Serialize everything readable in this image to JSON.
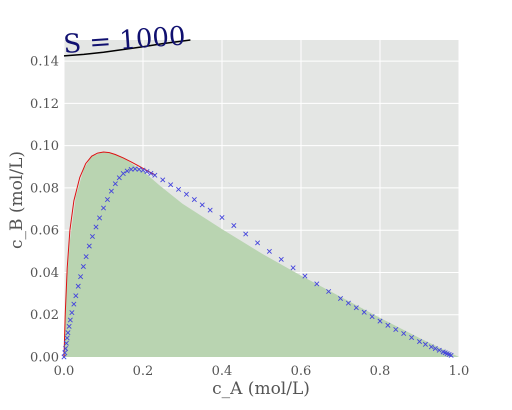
{
  "chart_data": {
    "type": "line",
    "title": "",
    "xlabel": "c_A (mol/L)",
    "ylabel": "c_B (mol/L)",
    "xlim": [
      0.0,
      1.0
    ],
    "ylim": [
      0.0,
      0.15
    ],
    "x_ticks": [
      "0.0",
      "0.2",
      "0.4",
      "0.6",
      "0.8",
      "1.0"
    ],
    "y_ticks": [
      "0.00",
      "0.02",
      "0.04",
      "0.06",
      "0.08",
      "0.10",
      "0.12",
      "0.14"
    ],
    "grid": true,
    "colors": {
      "background": "#e4e6e4",
      "grid": "#ffffff",
      "fill": "#b9d4b1",
      "red_line": "#dd1111",
      "markers": "#4444dd",
      "annotation_line": "#000000",
      "annotation_text": "#101070"
    },
    "annotation": {
      "text": "S = 1000",
      "line": [
        [
          0.0,
          0.1425
        ],
        [
          0.05,
          0.1432
        ],
        [
          0.1,
          0.1442
        ],
        [
          0.15,
          0.1455
        ],
        [
          0.2,
          0.1468
        ],
        [
          0.25,
          0.1483
        ],
        [
          0.32,
          0.15
        ]
      ]
    },
    "filled_region": [
      [
        0.0,
        0.0
      ],
      [
        0.005,
        0.03
      ],
      [
        0.015,
        0.055
      ],
      [
        0.03,
        0.076
      ],
      [
        0.05,
        0.089
      ],
      [
        0.07,
        0.095
      ],
      [
        0.1,
        0.097
      ],
      [
        0.13,
        0.096
      ],
      [
        0.16,
        0.093
      ],
      [
        0.2,
        0.088
      ],
      [
        0.24,
        0.0815
      ],
      [
        0.3,
        0.0725
      ],
      [
        0.4,
        0.0605
      ],
      [
        0.5,
        0.049
      ],
      [
        0.6,
        0.0385
      ],
      [
        0.7,
        0.0285
      ],
      [
        0.8,
        0.0185
      ],
      [
        0.9,
        0.009
      ],
      [
        1.0,
        0.0
      ]
    ],
    "series": [
      {
        "style": "line",
        "color": "#dd1111",
        "x": [
          0.0,
          0.003,
          0.008,
          0.015,
          0.025,
          0.04,
          0.055,
          0.07,
          0.085,
          0.1,
          0.115,
          0.13,
          0.15,
          0.17,
          0.19,
          0.21,
          0.23
        ],
        "y": [
          0.0,
          0.02,
          0.042,
          0.06,
          0.074,
          0.085,
          0.0915,
          0.095,
          0.0965,
          0.097,
          0.0967,
          0.0958,
          0.0942,
          0.0923,
          0.0903,
          0.0882,
          0.0862
        ]
      },
      {
        "style": "markers",
        "marker": "x",
        "color": "#4444dd",
        "x": [
          0.0,
          0.002,
          0.004,
          0.006,
          0.008,
          0.01,
          0.013,
          0.016,
          0.02,
          0.025,
          0.03,
          0.036,
          0.042,
          0.049,
          0.056,
          0.064,
          0.072,
          0.081,
          0.09,
          0.1,
          0.11,
          0.12,
          0.13,
          0.14,
          0.15,
          0.16,
          0.17,
          0.18,
          0.19,
          0.2,
          0.21,
          0.22,
          0.23,
          0.25,
          0.27,
          0.29,
          0.31,
          0.33,
          0.35,
          0.37,
          0.4,
          0.43,
          0.46,
          0.49,
          0.52,
          0.55,
          0.58,
          0.61,
          0.64,
          0.67,
          0.7,
          0.72,
          0.74,
          0.76,
          0.78,
          0.8,
          0.82,
          0.84,
          0.86,
          0.88,
          0.9,
          0.915,
          0.93,
          0.94,
          0.95,
          0.96,
          0.965,
          0.97,
          0.975,
          0.98
        ],
        "y": [
          0.0,
          0.002,
          0.004,
          0.0065,
          0.009,
          0.0115,
          0.0145,
          0.0175,
          0.021,
          0.025,
          0.029,
          0.0335,
          0.038,
          0.0428,
          0.0475,
          0.0525,
          0.057,
          0.0615,
          0.0658,
          0.0705,
          0.0745,
          0.0785,
          0.082,
          0.0848,
          0.0868,
          0.088,
          0.0888,
          0.089,
          0.0888,
          0.0884,
          0.0877,
          0.0869,
          0.086,
          0.0838,
          0.0815,
          0.0793,
          0.077,
          0.0745,
          0.072,
          0.0695,
          0.066,
          0.0622,
          0.0582,
          0.054,
          0.05,
          0.0462,
          0.0422,
          0.0383,
          0.0346,
          0.031,
          0.0277,
          0.0255,
          0.0233,
          0.0212,
          0.0191,
          0.017,
          0.015,
          0.013,
          0.0111,
          0.0092,
          0.0073,
          0.006,
          0.0048,
          0.004,
          0.0032,
          0.0024,
          0.002,
          0.0016,
          0.0012,
          0.0008
        ]
      }
    ]
  }
}
